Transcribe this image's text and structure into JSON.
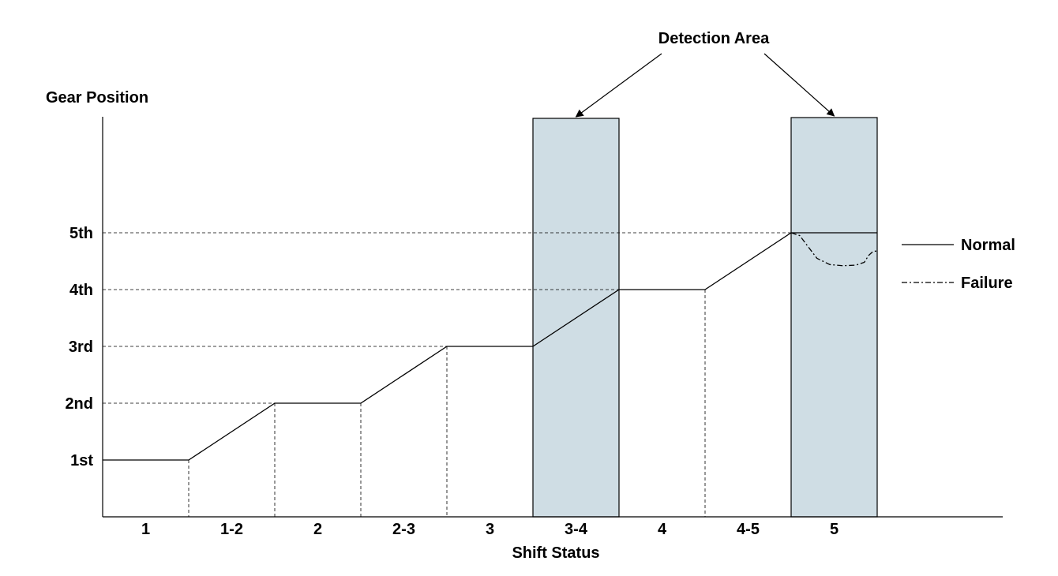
{
  "chart_data": {
    "type": "line",
    "title": "",
    "xlabel": "Shift Status",
    "ylabel": "Gear Position",
    "categories": [
      "1",
      "1-2",
      "2",
      "2-3",
      "3",
      "3-4",
      "4",
      "4-5",
      "5"
    ],
    "y_ticks": [
      "1st",
      "2nd",
      "3rd",
      "4th",
      "5th"
    ],
    "ylim": [
      0,
      7
    ],
    "grid": "dashed",
    "series": [
      {
        "name": "Normal",
        "style": "solid",
        "x": [
          0,
          1,
          2,
          3,
          4,
          5,
          6,
          7,
          8,
          9
        ],
        "y": [
          1,
          1,
          2,
          2,
          3,
          3,
          4,
          4,
          5,
          5
        ]
      },
      {
        "name": "Failure",
        "style": "dash-dot",
        "x": [
          8,
          8.1,
          8.2,
          8.3,
          8.45,
          8.6,
          8.75,
          8.85,
          8.9,
          8.95,
          9.0
        ],
        "y": [
          5,
          4.95,
          4.75,
          4.55,
          4.44,
          4.42,
          4.43,
          4.48,
          4.6,
          4.67,
          4.68
        ]
      }
    ],
    "highlight_regions": [
      {
        "category": "3-4"
      },
      {
        "category": "5"
      }
    ],
    "annotations": [
      {
        "text": "Detection Area",
        "targets": [
          "3-4",
          "5"
        ]
      }
    ],
    "legend_position": "right",
    "colors": {
      "highlight": "#cfdde4",
      "line": "#000000"
    }
  }
}
